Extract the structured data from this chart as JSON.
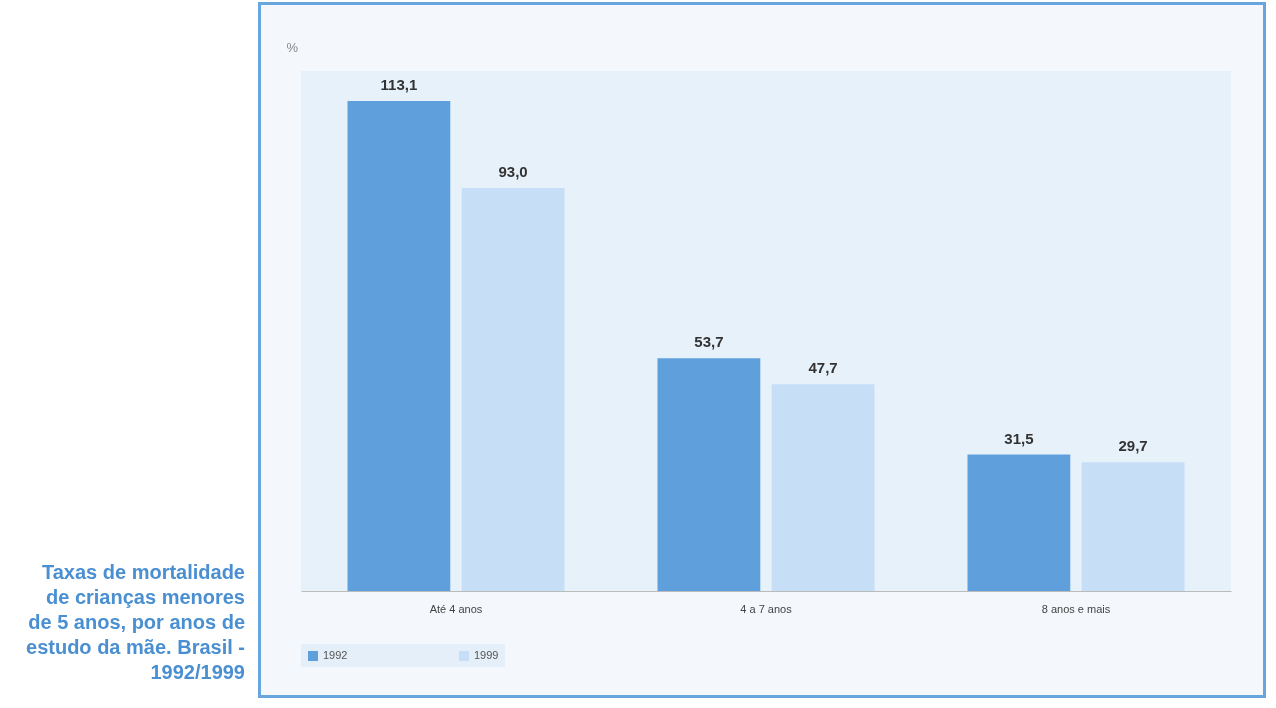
{
  "chart_data": {
    "type": "bar",
    "title": "Taxas de mortalidade de crianças menores de 5 anos, por anos de estudo da mãe. Brasil - 1992/1999",
    "ylabel": "%",
    "categories": [
      "Até 4 anos",
      "4 a 7 anos",
      "8 anos e mais"
    ],
    "series": [
      {
        "name": "1992",
        "color": "#5f9fdc",
        "values": [
          113.1,
          53.7,
          31.5
        ],
        "value_labels": [
          "113,1",
          "53,7",
          "31,5"
        ]
      },
      {
        "name": "1999",
        "color": "#c6def6",
        "values": [
          93.0,
          47.7,
          29.7
        ],
        "value_labels": [
          "93,0",
          "47,7",
          "29,7"
        ]
      }
    ],
    "grid": false,
    "legend": "bottom"
  }
}
